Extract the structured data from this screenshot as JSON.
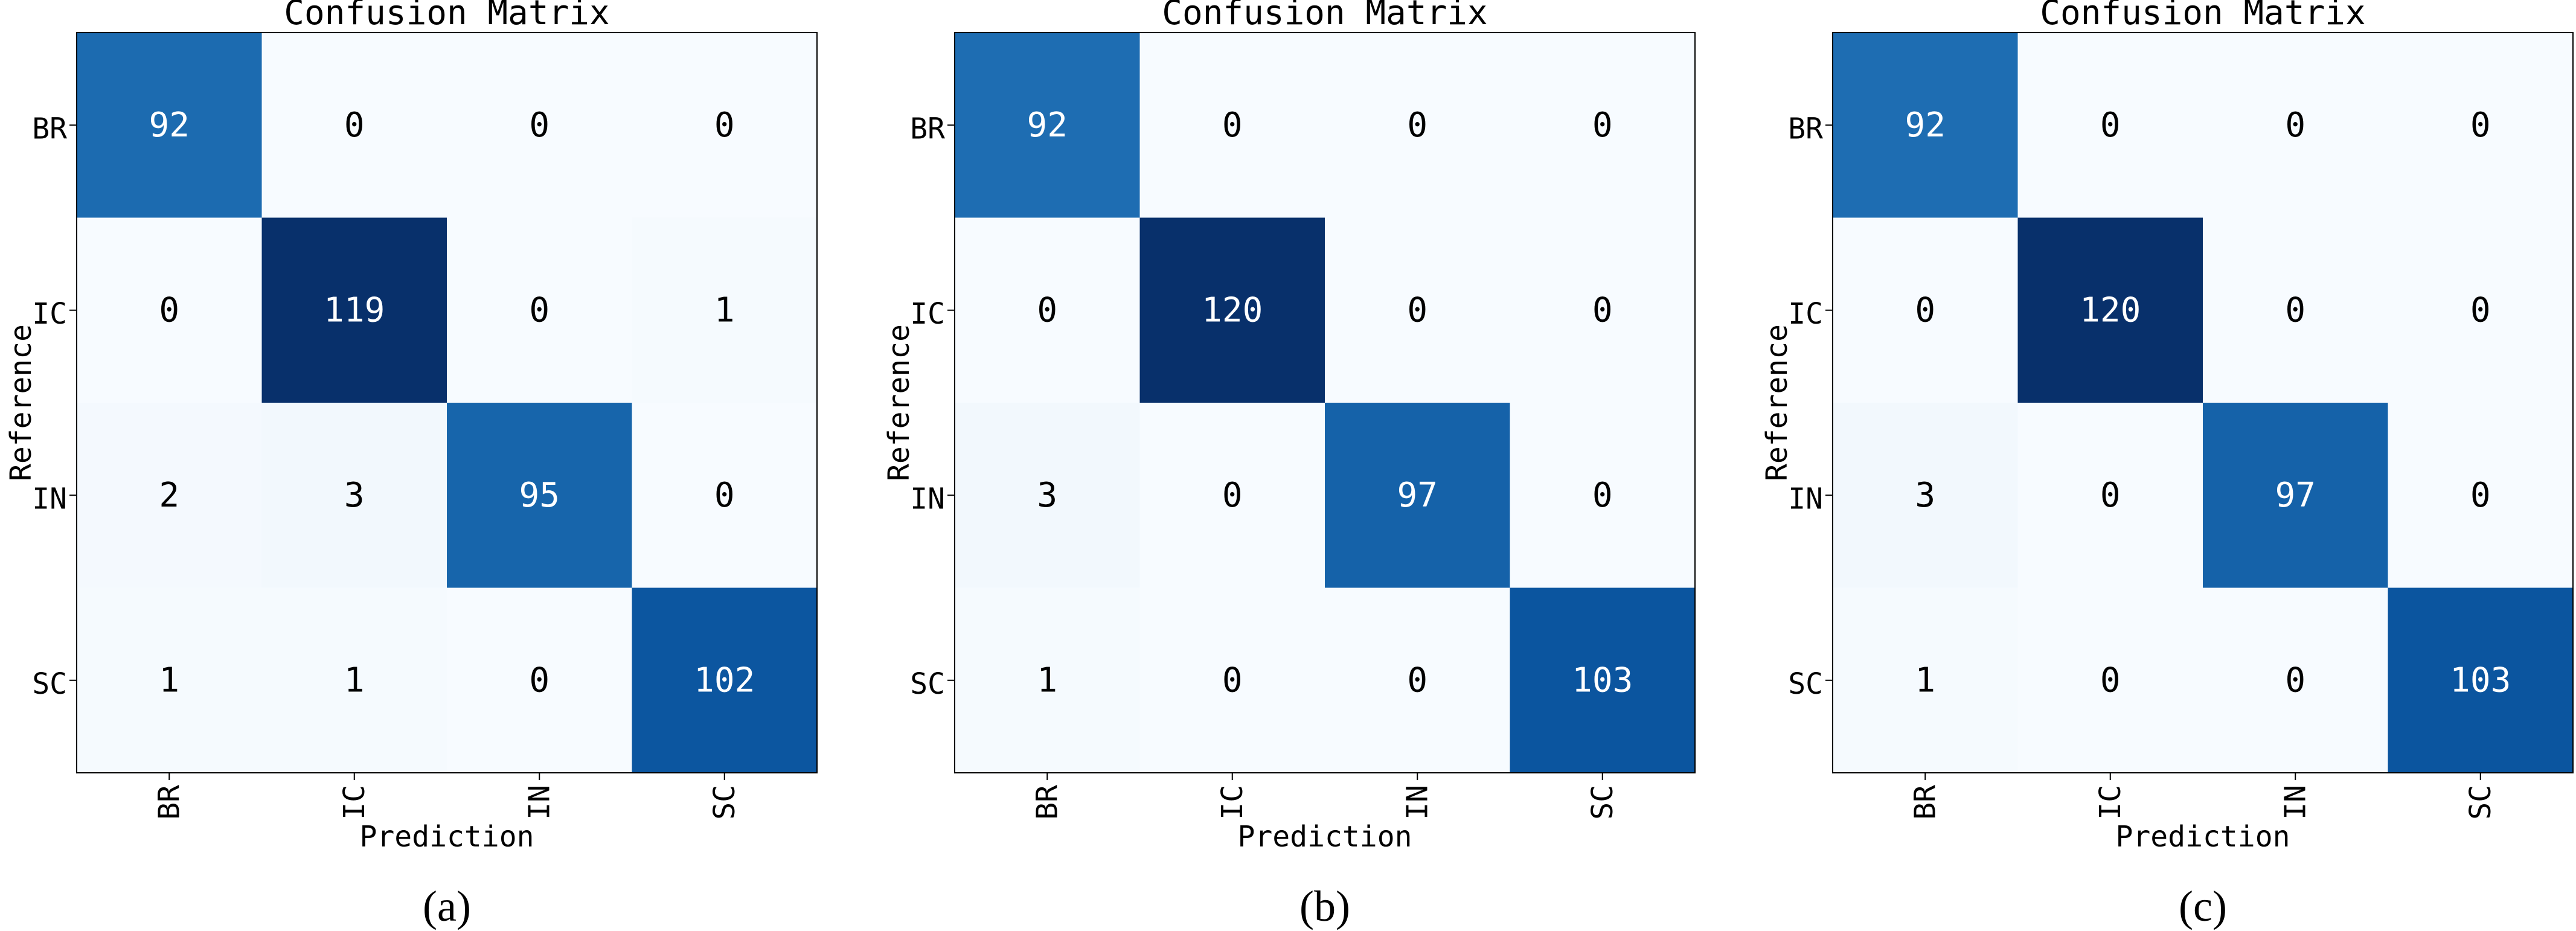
{
  "chart_data": [
    {
      "type": "heatmap",
      "title": "Confusion Matrix",
      "xlabel": "Prediction",
      "ylabel": "Reference",
      "x_categories": [
        "BR",
        "IC",
        "IN",
        "SC"
      ],
      "y_categories": [
        "BR",
        "IC",
        "IN",
        "SC"
      ],
      "values": [
        [
          92,
          0,
          0,
          0
        ],
        [
          0,
          119,
          0,
          1
        ],
        [
          2,
          3,
          95,
          0
        ],
        [
          1,
          1,
          0,
          102
        ]
      ],
      "panel_label": "(a)",
      "colormap": "Blues",
      "grid": false
    },
    {
      "type": "heatmap",
      "title": "Confusion Matrix",
      "xlabel": "Prediction",
      "ylabel": "Reference",
      "x_categories": [
        "BR",
        "IC",
        "IN",
        "SC"
      ],
      "y_categories": [
        "BR",
        "IC",
        "IN",
        "SC"
      ],
      "values": [
        [
          92,
          0,
          0,
          0
        ],
        [
          0,
          120,
          0,
          0
        ],
        [
          3,
          0,
          97,
          0
        ],
        [
          1,
          0,
          0,
          103
        ]
      ],
      "panel_label": "(b)",
      "colormap": "Blues",
      "grid": false
    },
    {
      "type": "heatmap",
      "title": "Confusion Matrix",
      "xlabel": "Prediction",
      "ylabel": "Reference",
      "x_categories": [
        "BR",
        "IC",
        "IN",
        "SC"
      ],
      "y_categories": [
        "BR",
        "IC",
        "IN",
        "SC"
      ],
      "values": [
        [
          92,
          0,
          0,
          0
        ],
        [
          0,
          120,
          0,
          0
        ],
        [
          3,
          0,
          97,
          0
        ],
        [
          1,
          0,
          0,
          103
        ]
      ],
      "panel_label": "(c)",
      "colormap": "Blues",
      "grid": false
    }
  ]
}
